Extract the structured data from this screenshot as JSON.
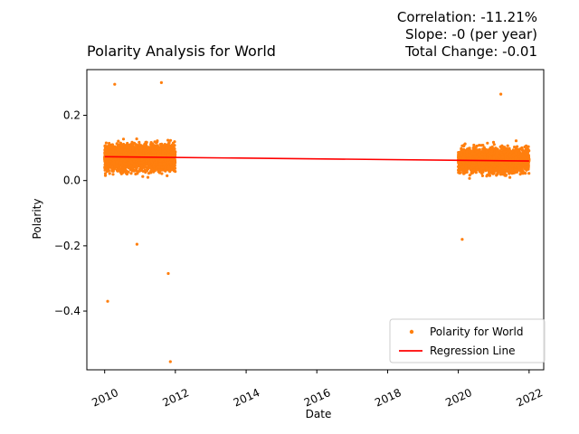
{
  "chart_data": {
    "type": "scatter",
    "title": "Polarity Analysis for World",
    "xlabel": "Date",
    "ylabel": "Polarity",
    "xlim": [
      "2009-07-01",
      "2022-06-01"
    ],
    "ylim": [
      -0.58,
      0.34
    ],
    "x_ticks": [
      "2010",
      "2012",
      "2014",
      "2016",
      "2018",
      "2020",
      "2022"
    ],
    "y_ticks": [
      "−0.4",
      "−0.2",
      "0.0",
      "0.2"
    ],
    "stats": {
      "correlation": "Correlation: -11.21%",
      "slope": "Slope: -0 (per year)",
      "total_change": "Total Change: -0.01"
    },
    "legend": {
      "position": "lower right",
      "entries": [
        "Polarity for World",
        "Regression Line"
      ]
    },
    "series": [
      {
        "name": "Polarity for World",
        "kind": "scatter",
        "color": "#ff7f0e",
        "clusters": [
          {
            "start": "2010-01-01",
            "end": "2011-12-31",
            "center": 0.072,
            "spread": 0.05,
            "min": -0.2,
            "max": 0.3
          },
          {
            "start": "2020-01-01",
            "end": "2021-12-31",
            "center": 0.062,
            "spread": 0.045,
            "min": -0.18,
            "max": 0.26
          }
        ],
        "outliers": [
          {
            "x": "2010-02-01",
            "y": -0.37
          },
          {
            "x": "2011-10-20",
            "y": -0.285
          },
          {
            "x": "2011-11-10",
            "y": -0.555
          },
          {
            "x": "2010-12-01",
            "y": -0.195
          },
          {
            "x": "2011-08-10",
            "y": 0.3
          },
          {
            "x": "2010-04-15",
            "y": 0.295
          },
          {
            "x": "2020-02-10",
            "y": -0.18
          },
          {
            "x": "2021-03-15",
            "y": 0.265
          }
        ]
      },
      {
        "name": "Regression Line",
        "kind": "line",
        "color": "#ff0000",
        "points": [
          {
            "x": "2010-01-01",
            "y": 0.073
          },
          {
            "x": "2022-01-01",
            "y": 0.06
          }
        ]
      }
    ]
  }
}
